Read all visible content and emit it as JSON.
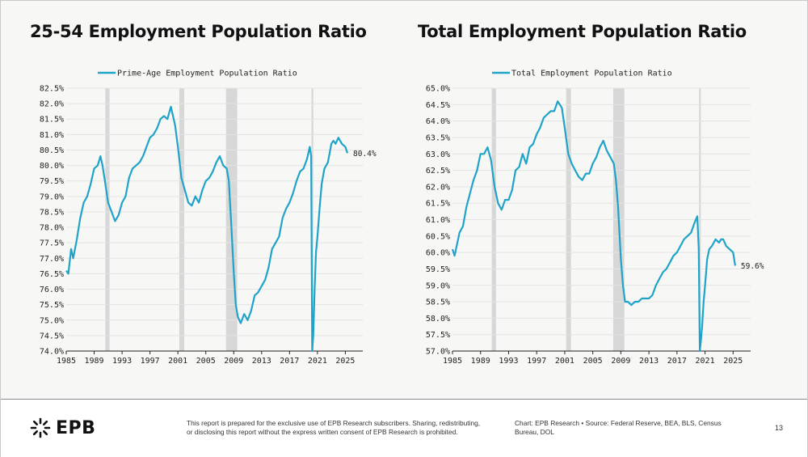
{
  "colors": {
    "line": "#1fa3c9",
    "recession": "#d7d7d7",
    "grid": "#e4e4e4",
    "axis": "#222222"
  },
  "chart_data": [
    {
      "type": "line",
      "title": "25-54 Employment Population Ratio",
      "legend": "Prime-Age Employment Population Ratio",
      "x_ticks": [
        "1985",
        "1989",
        "1993",
        "1997",
        "2001",
        "2005",
        "2009",
        "2013",
        "2017",
        "2021",
        "2025"
      ],
      "y_ticks": [
        "82.5%",
        "82.0%",
        "81.5%",
        "81.0%",
        "80.5%",
        "80.0%",
        "79.5%",
        "79.0%",
        "78.5%",
        "78.0%",
        "77.5%",
        "77.0%",
        "76.5%",
        "76.0%",
        "75.5%",
        "75.0%",
        "74.5%",
        "74.0%"
      ],
      "xlim": [
        1985,
        2027.5
      ],
      "ylim": [
        74.0,
        82.5
      ],
      "recessions": [
        [
          1990.6,
          1991.2
        ],
        [
          2001.2,
          2001.9
        ],
        [
          2007.9,
          2009.5
        ],
        [
          2020.15,
          2020.4
        ]
      ],
      "last_label": "80.4%",
      "x": [
        1985.0,
        1985.3,
        1985.7,
        1986.0,
        1986.5,
        1987.0,
        1987.5,
        1988.0,
        1988.5,
        1989.0,
        1989.5,
        1989.9,
        1990.2,
        1990.6,
        1991.0,
        1991.5,
        1992.0,
        1992.5,
        1993.0,
        1993.5,
        1994.0,
        1994.5,
        1995.0,
        1995.5,
        1996.0,
        1996.5,
        1997.0,
        1997.5,
        1998.0,
        1998.5,
        1999.0,
        1999.5,
        2000.0,
        2000.3,
        2000.6,
        2001.0,
        2001.5,
        2002.0,
        2002.5,
        2003.0,
        2003.5,
        2004.0,
        2004.5,
        2005.0,
        2005.5,
        2006.0,
        2006.5,
        2007.0,
        2007.5,
        2008.0,
        2008.3,
        2008.6,
        2009.0,
        2009.3,
        2009.6,
        2010.0,
        2010.5,
        2011.0,
        2011.5,
        2012.0,
        2012.5,
        2013.0,
        2013.5,
        2014.0,
        2014.5,
        2015.0,
        2015.5,
        2016.0,
        2016.5,
        2017.0,
        2017.5,
        2018.0,
        2018.5,
        2019.0,
        2019.5,
        2019.9,
        2020.1,
        2020.25,
        2020.4,
        2020.6,
        2020.8,
        2021.0,
        2021.3,
        2021.6,
        2022.0,
        2022.5,
        2023.0,
        2023.3,
        2023.6,
        2024.0,
        2024.5,
        2025.0,
        2025.3
      ],
      "y": [
        76.6,
        76.5,
        77.3,
        77.0,
        77.6,
        78.3,
        78.8,
        79.0,
        79.4,
        79.9,
        80.0,
        80.3,
        80.0,
        79.4,
        78.8,
        78.5,
        78.2,
        78.4,
        78.8,
        79.0,
        79.6,
        79.9,
        80.0,
        80.1,
        80.3,
        80.6,
        80.9,
        81.0,
        81.2,
        81.5,
        81.6,
        81.5,
        81.9,
        81.6,
        81.3,
        80.6,
        79.6,
        79.2,
        78.8,
        78.7,
        79.0,
        78.8,
        79.2,
        79.5,
        79.6,
        79.8,
        80.1,
        80.3,
        80.0,
        79.9,
        79.5,
        78.3,
        76.6,
        75.5,
        75.1,
        74.9,
        75.2,
        75.0,
        75.3,
        75.8,
        75.9,
        76.1,
        76.3,
        76.7,
        77.3,
        77.5,
        77.7,
        78.3,
        78.6,
        78.8,
        79.1,
        79.5,
        79.8,
        79.9,
        80.2,
        80.6,
        80.3,
        74.0,
        74.5,
        76.0,
        77.2,
        77.7,
        78.6,
        79.4,
        79.9,
        80.1,
        80.7,
        80.8,
        80.7,
        80.9,
        80.7,
        80.6,
        80.4
      ]
    },
    {
      "type": "line",
      "title": "Total Employment Population Ratio",
      "legend": "Total Employment Population Ratio",
      "x_ticks": [
        "1985",
        "1989",
        "1993",
        "1997",
        "2001",
        "2005",
        "2009",
        "2013",
        "2017",
        "2021",
        "2025"
      ],
      "y_ticks": [
        "65.0%",
        "64.5%",
        "64.0%",
        "63.5%",
        "63.0%",
        "62.5%",
        "62.0%",
        "61.5%",
        "61.0%",
        "60.5%",
        "60.0%",
        "59.5%",
        "59.0%",
        "58.5%",
        "58.0%",
        "57.5%",
        "57.0%"
      ],
      "xlim": [
        1985,
        2027.5
      ],
      "ylim": [
        57.0,
        65.0
      ],
      "recessions": [
        [
          1990.6,
          1991.2
        ],
        [
          2001.2,
          2001.9
        ],
        [
          2007.9,
          2009.5
        ],
        [
          2020.15,
          2020.4
        ]
      ],
      "last_label": "59.6%",
      "x": [
        1985.0,
        1985.3,
        1985.7,
        1986.0,
        1986.5,
        1987.0,
        1987.5,
        1988.0,
        1988.5,
        1989.0,
        1989.5,
        1990.0,
        1990.5,
        1991.0,
        1991.5,
        1992.0,
        1992.5,
        1993.0,
        1993.5,
        1994.0,
        1994.5,
        1995.0,
        1995.5,
        1996.0,
        1996.5,
        1997.0,
        1997.5,
        1998.0,
        1998.5,
        1999.0,
        1999.5,
        2000.0,
        2000.3,
        2000.6,
        2001.0,
        2001.5,
        2002.0,
        2002.5,
        2003.0,
        2003.5,
        2004.0,
        2004.5,
        2005.0,
        2005.5,
        2006.0,
        2006.5,
        2007.0,
        2007.5,
        2008.0,
        2008.3,
        2008.6,
        2009.0,
        2009.3,
        2009.6,
        2010.0,
        2010.5,
        2011.0,
        2011.5,
        2012.0,
        2012.5,
        2013.0,
        2013.5,
        2014.0,
        2014.5,
        2015.0,
        2015.5,
        2016.0,
        2016.5,
        2017.0,
        2017.5,
        2018.0,
        2018.5,
        2019.0,
        2019.5,
        2019.9,
        2020.1,
        2020.25,
        2020.4,
        2020.6,
        2020.8,
        2021.0,
        2021.3,
        2021.6,
        2022.0,
        2022.5,
        2023.0,
        2023.3,
        2023.6,
        2024.0,
        2024.5,
        2025.0,
        2025.3
      ],
      "y": [
        60.1,
        59.9,
        60.3,
        60.6,
        60.8,
        61.4,
        61.8,
        62.2,
        62.5,
        63.0,
        63.0,
        63.2,
        62.8,
        62.0,
        61.5,
        61.3,
        61.6,
        61.6,
        61.9,
        62.5,
        62.6,
        63.0,
        62.7,
        63.2,
        63.3,
        63.6,
        63.8,
        64.1,
        64.2,
        64.3,
        64.3,
        64.6,
        64.5,
        64.4,
        63.8,
        63.0,
        62.7,
        62.5,
        62.3,
        62.2,
        62.4,
        62.4,
        62.7,
        62.9,
        63.2,
        63.4,
        63.1,
        62.9,
        62.7,
        62.2,
        61.4,
        59.8,
        59.0,
        58.5,
        58.5,
        58.4,
        58.5,
        58.5,
        58.6,
        58.6,
        58.6,
        58.7,
        59.0,
        59.2,
        59.4,
        59.5,
        59.7,
        59.9,
        60.0,
        60.2,
        60.4,
        60.5,
        60.6,
        60.9,
        61.1,
        60.1,
        57.0,
        57.3,
        57.8,
        58.5,
        59.0,
        59.8,
        60.1,
        60.2,
        60.4,
        60.3,
        60.4,
        60.4,
        60.2,
        60.1,
        60.0,
        59.6
      ]
    }
  ],
  "footer": {
    "logo_text": "EPB",
    "disclaimer_line1": "This report is prepared for the exclusive use of EPB Research subscribers. Sharing, redistributing,",
    "disclaimer_line2": "or disclosing this report without the express written consent of EPB Research is prohibited.",
    "source_line1": "Chart: EPB Research  •  Source: Federal Reserve, BEA, BLS, Census",
    "source_line2": "Bureau, DOL",
    "page_number": "13"
  }
}
